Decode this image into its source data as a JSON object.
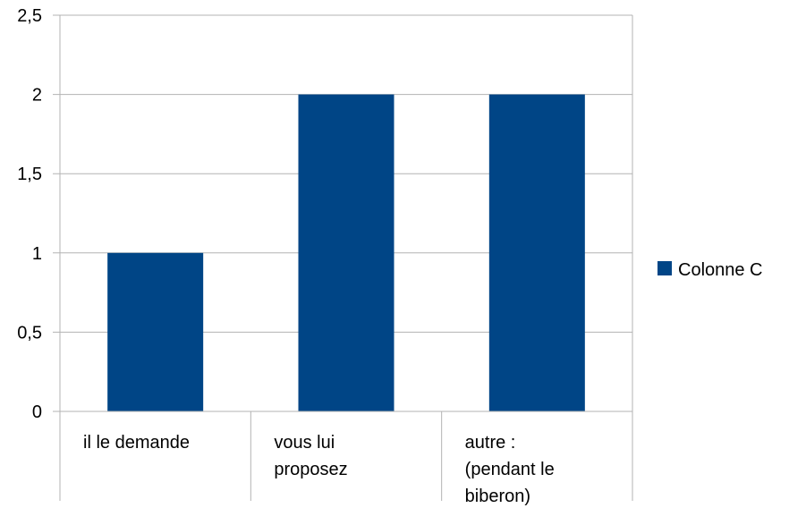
{
  "chart_data": {
    "type": "bar",
    "categories": [
      [
        "il le demande"
      ],
      [
        "vous lui",
        "proposez"
      ],
      [
        "autre :",
        "(pendant le",
        "biberon)"
      ]
    ],
    "series": [
      {
        "name": "Colonne C",
        "values": [
          1,
          2,
          2
        ],
        "color": "#004586"
      }
    ],
    "ylim": [
      0,
      2.5
    ],
    "yticks": [
      "0",
      "0,5",
      "1",
      "1,5",
      "2",
      "2,5"
    ],
    "grid": true,
    "legend_position": "right"
  }
}
